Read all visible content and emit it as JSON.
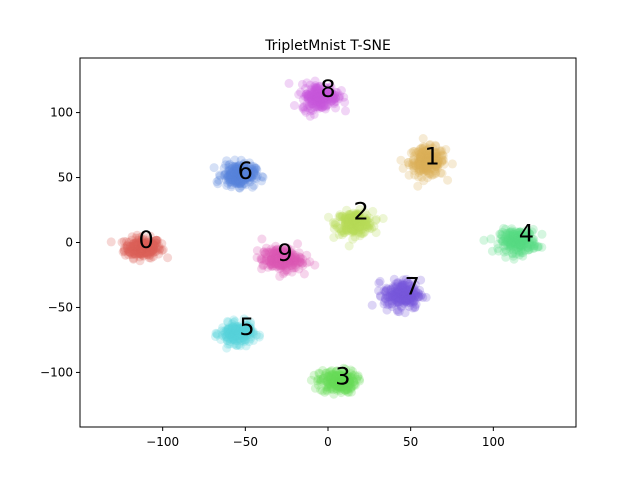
{
  "chart_data": {
    "type": "scatter",
    "title": "TripletMnist T-SNE",
    "xlabel": "",
    "ylabel": "",
    "xlim": [
      -150,
      150
    ],
    "ylim": [
      -142,
      142
    ],
    "xticks": [
      -100,
      -50,
      0,
      50,
      100
    ],
    "yticks": [
      -100,
      -50,
      0,
      50,
      100
    ],
    "grid": false,
    "point_alpha": 0.25,
    "clusters": [
      {
        "label": "0",
        "color": "#db5f57",
        "center": [
          -112,
          -4
        ],
        "spread": [
          10,
          7
        ],
        "label_pos": [
          -110,
          2
        ]
      },
      {
        "label": "1",
        "color": "#dbae57",
        "center": [
          60,
          62
        ],
        "spread": [
          10,
          10
        ],
        "label_pos": [
          63,
          66
        ]
      },
      {
        "label": "2",
        "color": "#b9db57",
        "center": [
          16,
          15
        ],
        "spread": [
          10,
          8
        ],
        "label_pos": [
          20,
          24
        ]
      },
      {
        "label": "3",
        "color": "#69db57",
        "center": [
          6,
          -107
        ],
        "spread": [
          10,
          8
        ],
        "label_pos": [
          9,
          -103
        ]
      },
      {
        "label": "4",
        "color": "#57db84",
        "center": [
          115,
          1
        ],
        "spread": [
          10,
          8
        ],
        "label_pos": [
          120,
          7
        ]
      },
      {
        "label": "5",
        "color": "#57d3db",
        "center": [
          -55,
          -70
        ],
        "spread": [
          9,
          7
        ],
        "label_pos": [
          -49,
          -65
        ]
      },
      {
        "label": "6",
        "color": "#5784db",
        "center": [
          -54,
          52
        ],
        "spread": [
          9,
          8
        ],
        "label_pos": [
          -50,
          55
        ]
      },
      {
        "label": "7",
        "color": "#7957db",
        "center": [
          45,
          -40
        ],
        "spread": [
          10,
          10
        ],
        "label_pos": [
          51,
          -34
        ]
      },
      {
        "label": "8",
        "color": "#c957db",
        "center": [
          -5,
          112
        ],
        "spread": [
          10,
          9
        ],
        "label_pos": [
          0,
          118
        ]
      },
      {
        "label": "9",
        "color": "#db57b2",
        "center": [
          -28,
          -13
        ],
        "spread": [
          11,
          8
        ],
        "label_pos": [
          -26,
          -8
        ]
      }
    ]
  }
}
